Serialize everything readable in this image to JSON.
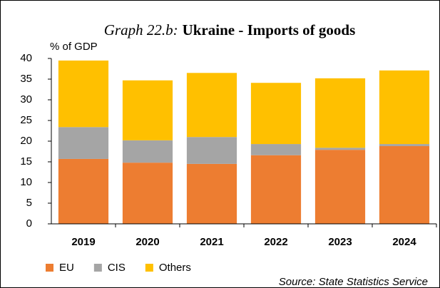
{
  "chart_data": {
    "type": "bar",
    "stacked": true,
    "title_prefix": "Graph 22.b:",
    "title": "Ukraine - Imports of goods",
    "y_label": "% of GDP",
    "source": "Source: State Statistics Service",
    "categories": [
      "2019",
      "2020",
      "2021",
      "2022",
      "2023",
      "2024"
    ],
    "series": [
      {
        "name": "EU",
        "color": "#ed7d31",
        "values": [
          15.7,
          14.8,
          14.5,
          16.6,
          17.9,
          18.8
        ]
      },
      {
        "name": "CIS",
        "color": "#a5a5a5",
        "values": [
          7.7,
          5.4,
          6.5,
          2.7,
          0.5,
          0.5
        ]
      },
      {
        "name": "Others",
        "color": "#ffc000",
        "values": [
          16.1,
          14.5,
          15.5,
          14.8,
          16.8,
          17.8
        ]
      }
    ],
    "ylim": [
      0,
      40
    ],
    "yticks": [
      0,
      5,
      10,
      15,
      20,
      25,
      30,
      35,
      40
    ],
    "legend": "bottom-left"
  }
}
